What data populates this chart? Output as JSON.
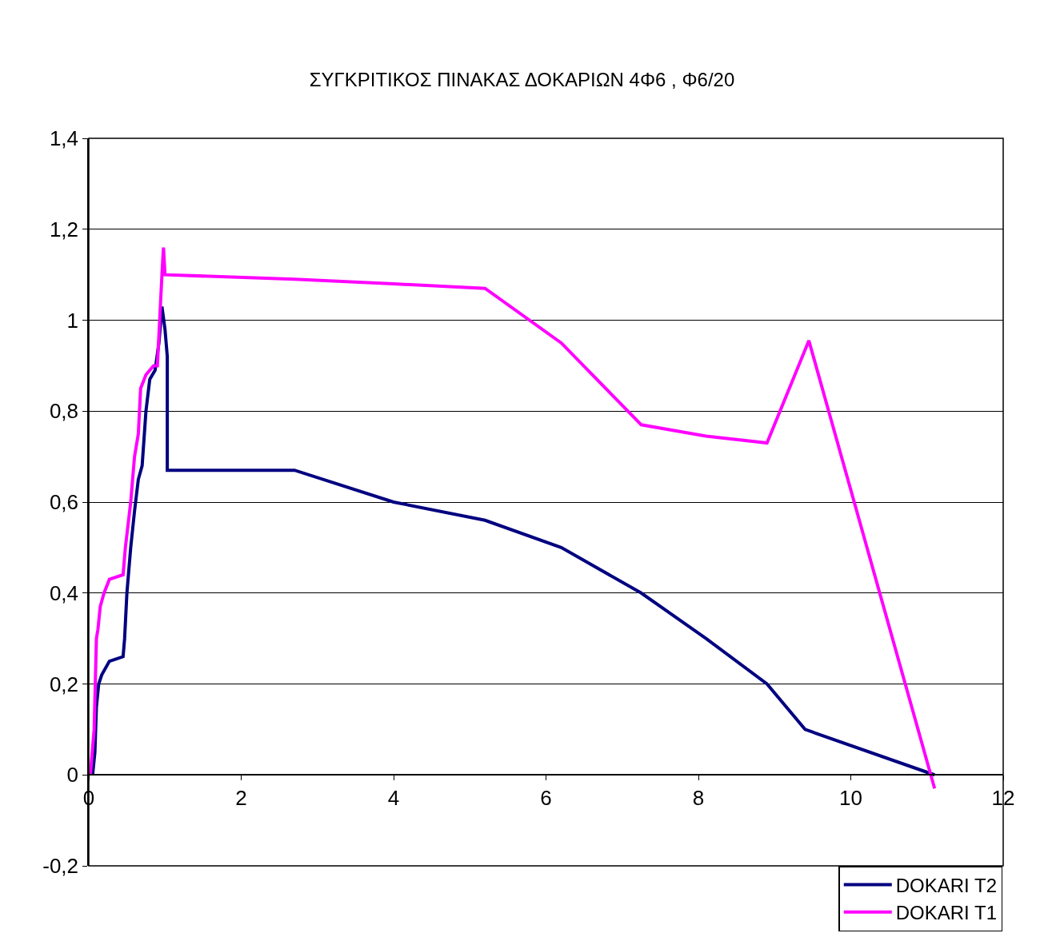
{
  "chart_data": {
    "type": "line",
    "title": "ΣΥΓΚΡΙΤΙΚΟΣ ΠΙΝΑΚΑΣ ΔΟΚΑΡΙΩΝ 4Φ6 , Φ6/20",
    "xlim": [
      0,
      12
    ],
    "xticks": [
      0,
      2,
      4,
      6,
      8,
      10,
      12
    ],
    "ylim": [
      -0.2,
      1.4
    ],
    "yticks": [
      {
        "value": -0.2,
        "label": "-0,2"
      },
      {
        "value": 0,
        "label": "0"
      },
      {
        "value": 0.2,
        "label": "0,2"
      },
      {
        "value": 0.4,
        "label": "0,4"
      },
      {
        "value": 0.6,
        "label": "0,6"
      },
      {
        "value": 0.8,
        "label": "0,8"
      },
      {
        "value": 1,
        "label": "1"
      },
      {
        "value": 1.2,
        "label": "1,2"
      },
      {
        "value": 1.4,
        "label": "1,4"
      }
    ],
    "grid": "y",
    "legend": "bottom right",
    "marker": "none",
    "line_style": "solid",
    "series": [
      {
        "name": "DOKARI T2",
        "color": "#000080",
        "x": [
          0.05,
          0.08,
          0.1,
          0.13,
          0.17,
          0.27,
          0.45,
          0.47,
          0.5,
          0.55,
          0.6,
          0.65,
          0.7,
          0.75,
          0.8,
          0.87,
          0.92,
          0.96,
          1.0,
          1.03,
          1.03,
          1.03,
          2.7,
          4.0,
          5.2,
          6.2,
          7.25,
          8.1,
          8.9,
          9.4,
          11.1
        ],
        "values": [
          0,
          0.05,
          0.15,
          0.2,
          0.22,
          0.25,
          0.26,
          0.3,
          0.4,
          0.5,
          0.58,
          0.65,
          0.68,
          0.8,
          0.87,
          0.89,
          0.95,
          1.03,
          0.98,
          0.92,
          0.87,
          0.67,
          0.67,
          0.6,
          0.56,
          0.5,
          0.4,
          0.3,
          0.2,
          0.1,
          0
        ]
      },
      {
        "name": "DOKARI T1",
        "color": "#ff00ff",
        "x": [
          0.02,
          0.07,
          0.1,
          0.12,
          0.15,
          0.2,
          0.27,
          0.45,
          0.48,
          0.55,
          0.6,
          0.65,
          0.68,
          0.75,
          0.85,
          0.9,
          0.93,
          0.96,
          0.98,
          1.0,
          2.7,
          4.0,
          5.2,
          6.2,
          7.25,
          8.1,
          8.9,
          9.45,
          11.1
        ],
        "values": [
          0,
          0.1,
          0.3,
          0.32,
          0.37,
          0.4,
          0.43,
          0.44,
          0.5,
          0.6,
          0.7,
          0.75,
          0.85,
          0.88,
          0.9,
          0.9,
          1.0,
          1.1,
          1.16,
          1.1,
          1.09,
          1.08,
          1.07,
          0.95,
          0.77,
          0.745,
          0.73,
          0.955,
          -0.03
        ]
      }
    ]
  }
}
